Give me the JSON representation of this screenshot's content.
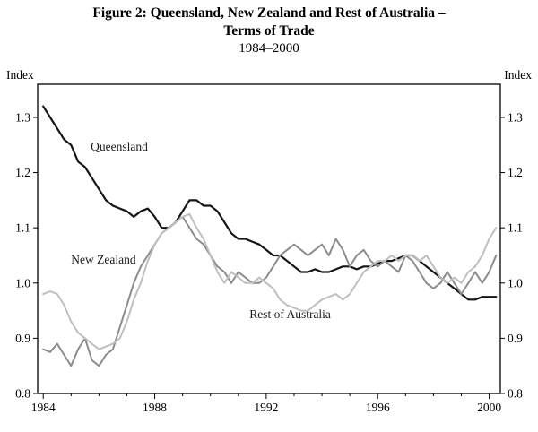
{
  "figure": {
    "title_line1": "Figure 2: Queensland, New Zealand and Rest of Australia –",
    "title_line2": "Terms of Trade",
    "title_line3": "1984–2000"
  },
  "axis": {
    "index_left": "Index",
    "index_right": "Index"
  },
  "chart_data": {
    "type": "line",
    "title": "Figure 2: Queensland, New Zealand and Rest of Australia – Terms of Trade",
    "subtitle": "1984–2000",
    "ylabel_left": "Index",
    "ylabel_right": "Index",
    "xlim": [
      1983.8,
      2000.4
    ],
    "ylim": [
      0.8,
      1.36
    ],
    "yticks": [
      0.8,
      0.9,
      1.0,
      1.1,
      1.2,
      1.3
    ],
    "xticks": [
      1984,
      1988,
      1992,
      1996,
      2000
    ],
    "grid": false,
    "legend": "in-plot annotations",
    "x_start": 1984,
    "x_step": 0.25,
    "series": [
      {
        "name": "Queensland",
        "color": "#151515",
        "width": 2.2,
        "values": [
          1.32,
          1.3,
          1.28,
          1.26,
          1.25,
          1.22,
          1.21,
          1.19,
          1.17,
          1.15,
          1.14,
          1.135,
          1.13,
          1.12,
          1.13,
          1.135,
          1.12,
          1.1,
          1.1,
          1.11,
          1.13,
          1.15,
          1.15,
          1.14,
          1.14,
          1.13,
          1.11,
          1.09,
          1.08,
          1.08,
          1.075,
          1.07,
          1.06,
          1.05,
          1.05,
          1.04,
          1.03,
          1.02,
          1.02,
          1.025,
          1.02,
          1.02,
          1.025,
          1.03,
          1.03,
          1.025,
          1.03,
          1.03,
          1.035,
          1.04,
          1.04,
          1.045,
          1.05,
          1.05,
          1.04,
          1.03,
          1.02,
          1.01,
          1.0,
          0.99,
          0.98,
          0.97,
          0.97,
          0.975,
          0.975,
          0.975
        ]
      },
      {
        "name": "New Zealand",
        "color": "#8c8c8c",
        "width": 2,
        "values": [
          0.88,
          0.875,
          0.89,
          0.87,
          0.85,
          0.88,
          0.9,
          0.86,
          0.85,
          0.87,
          0.88,
          0.92,
          0.96,
          1.0,
          1.03,
          1.05,
          1.07,
          1.09,
          1.1,
          1.11,
          1.12,
          1.1,
          1.08,
          1.07,
          1.05,
          1.03,
          1.02,
          1.0,
          1.02,
          1.01,
          1.0,
          1.0,
          1.01,
          1.03,
          1.05,
          1.06,
          1.07,
          1.06,
          1.05,
          1.06,
          1.07,
          1.05,
          1.08,
          1.06,
          1.03,
          1.05,
          1.06,
          1.04,
          1.03,
          1.04,
          1.03,
          1.02,
          1.05,
          1.04,
          1.02,
          1.0,
          0.99,
          1.0,
          1.02,
          1.0,
          0.98,
          1.0,
          1.02,
          1.0,
          1.02,
          1.05
        ]
      },
      {
        "name": "Rest of Australia",
        "color": "#bfbfbf",
        "width": 2,
        "values": [
          0.98,
          0.985,
          0.98,
          0.96,
          0.93,
          0.91,
          0.9,
          0.89,
          0.88,
          0.885,
          0.89,
          0.9,
          0.93,
          0.97,
          1.0,
          1.04,
          1.07,
          1.09,
          1.1,
          1.11,
          1.12,
          1.125,
          1.1,
          1.08,
          1.05,
          1.02,
          1.0,
          1.02,
          1.01,
          1.0,
          1.0,
          1.01,
          1.0,
          0.99,
          0.97,
          0.96,
          0.955,
          0.95,
          0.95,
          0.96,
          0.97,
          0.975,
          0.98,
          0.97,
          0.98,
          1.0,
          1.02,
          1.03,
          1.04,
          1.04,
          1.05,
          1.04,
          1.05,
          1.05,
          1.04,
          1.05,
          1.03,
          1.01,
          1.0,
          1.01,
          1.0,
          1.02,
          1.03,
          1.05,
          1.08,
          1.1
        ]
      }
    ],
    "annotations": [
      {
        "text": "Queensland",
        "x": 1985.7,
        "y": 1.24
      },
      {
        "text": "New Zealand",
        "x": 1985.0,
        "y": 1.035
      },
      {
        "text": "Rest of Australia",
        "x": 1991.4,
        "y": 0.936
      }
    ]
  }
}
